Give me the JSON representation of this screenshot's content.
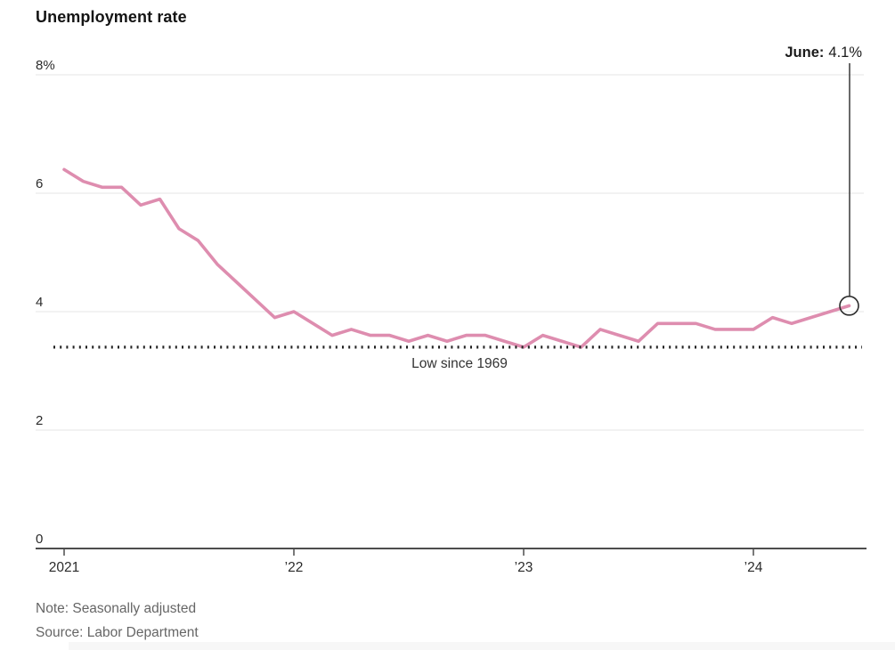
{
  "page": {
    "title": "Unemployment rate",
    "note": "Note: Seasonally adjusted",
    "source": "Source: Labor Department"
  },
  "chart_data": {
    "type": "line",
    "title": "Unemployment rate",
    "unit": "percent",
    "frequency": "monthly",
    "grid": "horizontal",
    "ylim": [
      0,
      8
    ],
    "x_labels": [
      "2021-01",
      "2021-02",
      "2021-03",
      "2021-04",
      "2021-05",
      "2021-06",
      "2021-07",
      "2021-08",
      "2021-09",
      "2021-10",
      "2021-11",
      "2021-12",
      "2022-01",
      "2022-02",
      "2022-03",
      "2022-04",
      "2022-05",
      "2022-06",
      "2022-07",
      "2022-08",
      "2022-09",
      "2022-10",
      "2022-11",
      "2022-12",
      "2023-01",
      "2023-02",
      "2023-03",
      "2023-04",
      "2023-05",
      "2023-06",
      "2023-07",
      "2023-08",
      "2023-09",
      "2023-10",
      "2023-11",
      "2023-12",
      "2024-01",
      "2024-02",
      "2024-03",
      "2024-04",
      "2024-05",
      "2024-06"
    ],
    "series": [
      {
        "name": "Unemployment rate",
        "color": "#DE8DAF",
        "values": [
          6.4,
          6.2,
          6.1,
          6.1,
          5.8,
          5.9,
          5.4,
          5.2,
          4.8,
          4.5,
          4.2,
          3.9,
          4.0,
          3.8,
          3.6,
          3.7,
          3.6,
          3.6,
          3.5,
          3.6,
          3.5,
          3.6,
          3.6,
          3.5,
          3.4,
          3.6,
          3.5,
          3.4,
          3.7,
          3.6,
          3.5,
          3.8,
          3.8,
          3.8,
          3.7,
          3.7,
          3.7,
          3.9,
          3.8,
          3.9,
          4.0,
          4.1
        ]
      }
    ],
    "yticks": [
      {
        "value": 8,
        "label": "8%"
      },
      {
        "value": 6,
        "label": "6"
      },
      {
        "value": 4,
        "label": "4"
      },
      {
        "value": 2,
        "label": "2"
      },
      {
        "value": 0,
        "label": "0"
      }
    ],
    "xticks": [
      {
        "month_index": 0,
        "label": "2021"
      },
      {
        "month_index": 12,
        "label": "’22"
      },
      {
        "month_index": 24,
        "label": "’23"
      },
      {
        "month_index": 36,
        "label": "’24"
      }
    ],
    "reference_line": {
      "value": 3.4,
      "label": "Low since 1969",
      "style": "dotted",
      "color": "#222222"
    },
    "annotation": {
      "label": "June:",
      "value_label": "4.1%",
      "month_index": 41,
      "value": 4.1
    },
    "colors": {
      "line": "#DE8DAF",
      "grid": "#e6e6e6",
      "axis": "#4d4d4d",
      "tick_text": "#2b2b2b",
      "reference": "#222222",
      "annotation_stroke": "#2b2b2b",
      "note_text": "#666666"
    }
  }
}
